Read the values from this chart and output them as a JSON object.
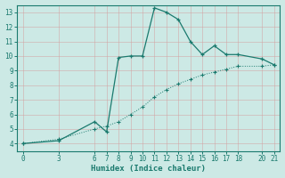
{
  "title": "",
  "xlabel": "Humidex (Indice chaleur)",
  "ylabel": "",
  "bg_color": "#cce9e5",
  "line_color": "#1a7a6e",
  "grid_color_major": "#b8d8d4",
  "grid_color_minor": "#daecea",
  "xlim": [
    -0.5,
    21.5
  ],
  "ylim": [
    3.5,
    13.5
  ],
  "xticks": [
    0,
    3,
    6,
    7,
    8,
    9,
    10,
    11,
    12,
    13,
    14,
    15,
    16,
    17,
    18,
    20,
    21
  ],
  "yticks": [
    4,
    5,
    6,
    7,
    8,
    9,
    10,
    11,
    12,
    13
  ],
  "series1_x": [
    0,
    3,
    6,
    7,
    8,
    9,
    10,
    11,
    12,
    13,
    14,
    15,
    16,
    17,
    18,
    20,
    21
  ],
  "series1_y": [
    4.0,
    4.2,
    5.5,
    4.8,
    9.9,
    10.0,
    10.0,
    13.3,
    13.0,
    12.5,
    11.0,
    10.1,
    10.7,
    10.1,
    10.1,
    9.8,
    9.4
  ],
  "series2_x": [
    0,
    3,
    6,
    7,
    8,
    9,
    10,
    11,
    12,
    13,
    14,
    15,
    16,
    17,
    18,
    20,
    21
  ],
  "series2_y": [
    4.0,
    4.3,
    5.0,
    5.2,
    5.5,
    6.0,
    6.5,
    7.2,
    7.7,
    8.1,
    8.4,
    8.7,
    8.9,
    9.1,
    9.3,
    9.3,
    9.4
  ]
}
